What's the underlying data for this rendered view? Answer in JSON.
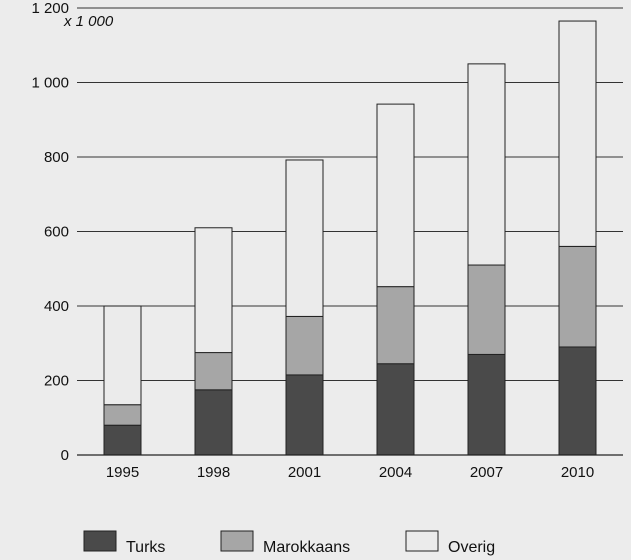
{
  "chart_data": {
    "type": "bar",
    "stacked": true,
    "unit_label": "x 1 000",
    "categories": [
      "1995",
      "1998",
      "2001",
      "2004",
      "2007",
      "2010"
    ],
    "series": [
      {
        "name": "Turks",
        "color": "#4a4a4a",
        "values": [
          80,
          175,
          215,
          245,
          270,
          290
        ]
      },
      {
        "name": "Marokkaans",
        "color": "#a6a6a6",
        "values": [
          55,
          100,
          157,
          207,
          240,
          270
        ]
      },
      {
        "name": "Overig",
        "color": "#ebebeb",
        "values": [
          265,
          335,
          420,
          490,
          540,
          605
        ]
      }
    ],
    "ylim": [
      0,
      1200
    ],
    "yticks": [
      0,
      200,
      400,
      600,
      800,
      1000,
      1200
    ],
    "ytick_labels": [
      "0",
      "200",
      "400",
      "600",
      "800",
      "1 000",
      "1 200"
    ],
    "grid": true,
    "legend_position": "bottom"
  }
}
